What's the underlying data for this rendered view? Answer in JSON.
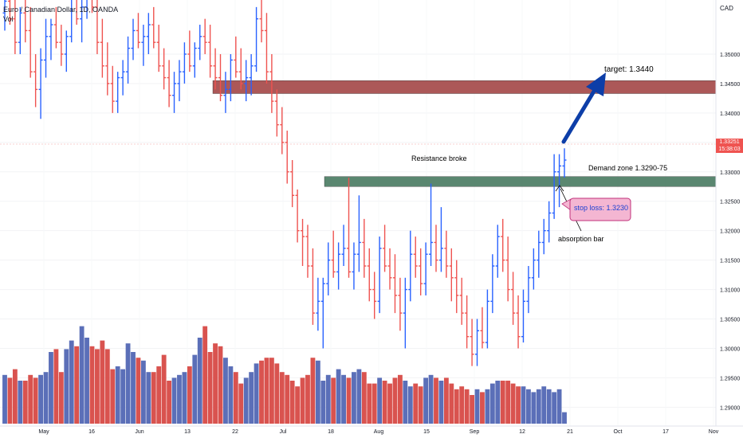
{
  "header": {
    "symbol_line": "Euro / Canadian Dollar, 1D, OANDA",
    "volume_label": "Vol"
  },
  "axis": {
    "currency": "CAD",
    "last_price": "1.33251",
    "countdown": "15:38:03"
  },
  "annotations": {
    "target": "target: 1.3440",
    "demand_zone": "Demand zone 1.3290-75",
    "resistance": "Resistance broke",
    "stop_loss": "stop loss: 1.3230",
    "absorption": "absorption bar"
  },
  "colors": {
    "up": "#2962ff",
    "down": "#ef5350",
    "vol_up": "#5b6fb8",
    "vol_down": "#d9534f",
    "target_zone": "#9e3b3b",
    "demand_zone": "#3d7257",
    "stop_box": "#f4b6d2",
    "stop_border": "#c0327b",
    "arrow": "#0d3ea8"
  },
  "chart_data": {
    "type": "ohlc",
    "y_ticks": [
      "1.35000",
      "1.34500",
      "1.34000",
      "1.33500",
      "1.33000",
      "1.32500",
      "1.32000",
      "1.31500",
      "1.31000",
      "1.30500",
      "1.30000",
      "1.29500",
      "1.29000"
    ],
    "ylim": [
      1.2868,
      1.3592
    ],
    "x_ticks": [
      "May",
      "16",
      "Jun",
      "13",
      "22",
      "Jul",
      "18",
      "Aug",
      "15",
      "Sep",
      "12",
      "21",
      "Oct",
      "17",
      "Nov"
    ],
    "zones": [
      {
        "name": "target zone",
        "from": 1.3433,
        "to": 1.3455
      },
      {
        "name": "demand zone",
        "from": 1.3275,
        "to": 1.3292
      }
    ],
    "bars": [
      [
        1.357,
        1.365,
        1.354,
        1.359,
        1.7
      ],
      [
        1.359,
        1.363,
        1.355,
        1.356,
        1.6
      ],
      [
        1.356,
        1.36,
        1.35,
        1.352,
        1.9
      ],
      [
        1.352,
        1.358,
        1.35,
        1.357,
        1.5
      ],
      [
        1.357,
        1.362,
        1.352,
        1.354,
        1.5
      ],
      [
        1.354,
        1.358,
        1.346,
        1.347,
        1.7
      ],
      [
        1.347,
        1.35,
        1.341,
        1.344,
        1.6
      ],
      [
        1.344,
        1.351,
        1.339,
        1.349,
        1.7
      ],
      [
        1.349,
        1.356,
        1.346,
        1.353,
        1.8
      ],
      [
        1.353,
        1.356,
        1.349,
        1.355,
        2.5
      ],
      [
        1.355,
        1.358,
        1.351,
        1.352,
        2.6
      ],
      [
        1.352,
        1.355,
        1.348,
        1.35,
        1.8
      ],
      [
        1.35,
        1.354,
        1.347,
        1.353,
        2.6
      ],
      [
        1.353,
        1.362,
        1.352,
        1.36,
        2.9
      ],
      [
        1.36,
        1.362,
        1.355,
        1.356,
        2.7
      ],
      [
        1.356,
        1.36,
        1.352,
        1.358,
        3.4
      ],
      [
        1.358,
        1.363,
        1.356,
        1.361,
        3.0
      ],
      [
        1.361,
        1.364,
        1.357,
        1.358,
        2.7
      ],
      [
        1.358,
        1.361,
        1.35,
        1.352,
        2.6
      ],
      [
        1.352,
        1.356,
        1.346,
        1.348,
        2.9
      ],
      [
        1.348,
        1.352,
        1.343,
        1.345,
        2.6
      ],
      [
        1.345,
        1.348,
        1.34,
        1.342,
        1.9
      ],
      [
        1.342,
        1.347,
        1.34,
        1.346,
        2.0
      ],
      [
        1.346,
        1.349,
        1.343,
        1.347,
        1.9
      ],
      [
        1.347,
        1.353,
        1.345,
        1.351,
        2.8
      ],
      [
        1.351,
        1.356,
        1.349,
        1.354,
        2.5
      ],
      [
        1.354,
        1.357,
        1.351,
        1.352,
        2.3
      ],
      [
        1.352,
        1.355,
        1.348,
        1.353,
        2.2
      ],
      [
        1.353,
        1.357,
        1.35,
        1.355,
        1.8
      ],
      [
        1.355,
        1.358,
        1.351,
        1.352,
        1.8
      ],
      [
        1.352,
        1.355,
        1.347,
        1.348,
        2.0
      ],
      [
        1.348,
        1.351,
        1.344,
        1.346,
        2.4
      ],
      [
        1.346,
        1.349,
        1.341,
        1.343,
        1.5
      ],
      [
        1.343,
        1.347,
        1.34,
        1.345,
        1.6
      ],
      [
        1.345,
        1.349,
        1.342,
        1.347,
        1.7
      ],
      [
        1.347,
        1.352,
        1.345,
        1.35,
        1.8
      ],
      [
        1.35,
        1.354,
        1.347,
        1.348,
        2.0
      ],
      [
        1.348,
        1.352,
        1.346,
        1.351,
        2.4
      ],
      [
        1.351,
        1.355,
        1.349,
        1.353,
        3.0
      ],
      [
        1.353,
        1.356,
        1.35,
        1.352,
        3.4
      ],
      [
        1.352,
        1.355,
        1.346,
        1.348,
        2.5
      ],
      [
        1.348,
        1.351,
        1.344,
        1.346,
        2.8
      ],
      [
        1.346,
        1.35,
        1.342,
        1.343,
        2.7
      ],
      [
        1.343,
        1.347,
        1.34,
        1.344,
        2.3
      ],
      [
        1.344,
        1.35,
        1.342,
        1.349,
        2.0
      ],
      [
        1.349,
        1.353,
        1.346,
        1.347,
        1.8
      ],
      [
        1.347,
        1.351,
        1.344,
        1.345,
        1.4
      ],
      [
        1.345,
        1.349,
        1.342,
        1.346,
        1.6
      ],
      [
        1.346,
        1.35,
        1.343,
        1.348,
        1.8
      ],
      [
        1.348,
        1.358,
        1.347,
        1.356,
        2.1
      ],
      [
        1.356,
        1.36,
        1.352,
        1.354,
        2.2
      ],
      [
        1.354,
        1.357,
        1.345,
        1.347,
        2.3
      ],
      [
        1.347,
        1.35,
        1.34,
        1.342,
        2.3
      ],
      [
        1.342,
        1.344,
        1.336,
        1.338,
        2.1
      ],
      [
        1.338,
        1.341,
        1.333,
        1.335,
        1.8
      ],
      [
        1.335,
        1.337,
        1.328,
        1.33,
        1.7
      ],
      [
        1.33,
        1.332,
        1.324,
        1.326,
        1.5
      ],
      [
        1.326,
        1.327,
        1.318,
        1.32,
        1.3
      ],
      [
        1.32,
        1.322,
        1.314,
        1.319,
        1.6
      ],
      [
        1.319,
        1.321,
        1.312,
        1.314,
        1.7
      ],
      [
        1.314,
        1.317,
        1.304,
        1.306,
        2.3
      ],
      [
        1.306,
        1.312,
        1.303,
        1.308,
        2.2
      ],
      [
        1.308,
        1.312,
        1.3,
        1.311,
        1.5
      ],
      [
        1.311,
        1.318,
        1.309,
        1.315,
        1.7
      ],
      [
        1.315,
        1.32,
        1.312,
        1.313,
        1.6
      ],
      [
        1.313,
        1.318,
        1.31,
        1.316,
        1.9
      ],
      [
        1.316,
        1.321,
        1.314,
        1.317,
        1.7
      ],
      [
        1.317,
        1.329,
        1.312,
        1.313,
        1.6
      ],
      [
        1.313,
        1.318,
        1.31,
        1.316,
        1.8
      ],
      [
        1.316,
        1.326,
        1.313,
        1.318,
        1.9
      ],
      [
        1.318,
        1.322,
        1.312,
        1.314,
        1.8
      ],
      [
        1.314,
        1.317,
        1.308,
        1.31,
        1.4
      ],
      [
        1.31,
        1.313,
        1.305,
        1.308,
        1.4
      ],
      [
        1.308,
        1.319,
        1.306,
        1.317,
        1.6
      ],
      [
        1.317,
        1.321,
        1.313,
        1.314,
        1.5
      ],
      [
        1.314,
        1.317,
        1.31,
        1.312,
        1.4
      ],
      [
        1.312,
        1.316,
        1.306,
        1.309,
        1.6
      ],
      [
        1.309,
        1.312,
        1.303,
        1.306,
        1.7
      ],
      [
        1.306,
        1.312,
        1.3,
        1.31,
        1.5
      ],
      [
        1.31,
        1.32,
        1.308,
        1.316,
        1.3
      ],
      [
        1.316,
        1.319,
        1.312,
        1.314,
        1.4
      ],
      [
        1.314,
        1.317,
        1.309,
        1.311,
        1.3
      ],
      [
        1.311,
        1.318,
        1.309,
        1.316,
        1.6
      ],
      [
        1.316,
        1.328,
        1.314,
        1.318,
        1.7
      ],
      [
        1.318,
        1.321,
        1.313,
        1.315,
        1.6
      ],
      [
        1.315,
        1.324,
        1.313,
        1.317,
        1.5
      ],
      [
        1.317,
        1.32,
        1.312,
        1.314,
        1.6
      ],
      [
        1.314,
        1.317,
        1.308,
        1.312,
        1.4
      ],
      [
        1.312,
        1.315,
        1.306,
        1.309,
        1.2
      ],
      [
        1.309,
        1.312,
        1.304,
        1.306,
        1.3
      ],
      [
        1.306,
        1.309,
        1.3,
        1.302,
        1.2
      ],
      [
        1.302,
        1.305,
        1.297,
        1.299,
        1.0
      ],
      [
        1.299,
        1.305,
        1.297,
        1.303,
        1.2
      ],
      [
        1.303,
        1.307,
        1.3,
        1.301,
        1.1
      ],
      [
        1.301,
        1.31,
        1.3,
        1.308,
        1.2
      ],
      [
        1.308,
        1.316,
        1.306,
        1.314,
        1.4
      ],
      [
        1.314,
        1.321,
        1.312,
        1.319,
        1.5
      ],
      [
        1.319,
        1.322,
        1.313,
        1.315,
        1.5
      ],
      [
        1.315,
        1.319,
        1.308,
        1.31,
        1.5
      ],
      [
        1.31,
        1.313,
        1.304,
        1.306,
        1.4
      ],
      [
        1.306,
        1.309,
        1.3,
        1.302,
        1.3
      ],
      [
        1.302,
        1.31,
        1.301,
        1.308,
        1.3
      ],
      [
        1.308,
        1.314,
        1.306,
        1.312,
        1.2
      ],
      [
        1.312,
        1.317,
        1.31,
        1.315,
        1.1
      ],
      [
        1.315,
        1.32,
        1.312,
        1.318,
        1.2
      ],
      [
        1.318,
        1.322,
        1.316,
        1.32,
        1.3
      ],
      [
        1.32,
        1.325,
        1.318,
        1.323,
        1.2
      ],
      [
        1.323,
        1.333,
        1.322,
        1.33,
        1.1
      ],
      [
        1.33,
        1.333,
        1.324,
        1.331,
        1.2
      ],
      [
        1.331,
        1.334,
        1.329,
        1.332,
        0.4
      ]
    ]
  }
}
